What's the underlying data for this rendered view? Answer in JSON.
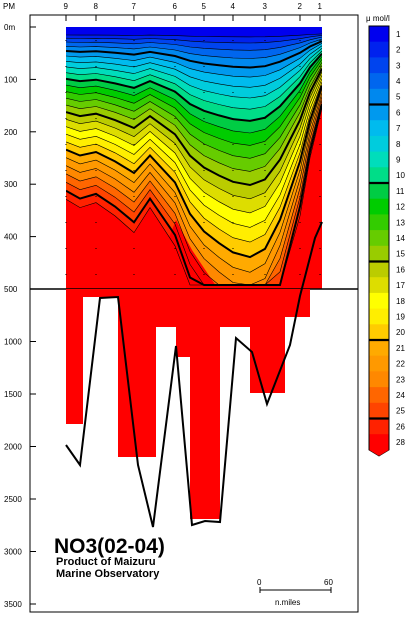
{
  "chart_data": {
    "type": "contour_section",
    "title": "NO3(02-04)",
    "subtitle_line1": "Product of Maizuru",
    "subtitle_line2": "Marine Observatory",
    "units": "μ mol/l",
    "top_axis_label": "PM",
    "station_labels": [
      "9",
      "8",
      "7",
      "6",
      "5",
      "4",
      "3",
      "2",
      "1"
    ],
    "depth_ticks_upper": [
      {
        "value": 0,
        "label": "0m"
      },
      {
        "value": 100,
        "label": "100"
      },
      {
        "value": 200,
        "label": "200"
      },
      {
        "value": 300,
        "label": "300"
      },
      {
        "value": 400,
        "label": "400"
      },
      {
        "value": 500,
        "label": "500"
      }
    ],
    "depth_ticks_lower": [
      {
        "value": 1000,
        "label": "1000"
      },
      {
        "value": 1500,
        "label": "1500"
      },
      {
        "value": 2000,
        "label": "2000"
      },
      {
        "value": 2500,
        "label": "2500"
      },
      {
        "value": 3000,
        "label": "3000"
      },
      {
        "value": 3500,
        "label": "3500"
      }
    ],
    "scale_bar": {
      "start_label": "0",
      "end_label": "60",
      "unit_label": "n.miles"
    },
    "colorbar_labels": [
      "1",
      "2",
      "3",
      "4",
      "5",
      "6",
      "7",
      "8",
      "9",
      "10",
      "11",
      "12",
      "13",
      "14",
      "15",
      "16",
      "17",
      "18",
      "19",
      "20",
      "21",
      "22",
      "23",
      "24",
      "25",
      "26",
      "28"
    ],
    "colorbar_colors": [
      "#0000ee",
      "#0022ee",
      "#0044ee",
      "#0066ee",
      "#0088ee",
      "#0099ee",
      "#00bbee",
      "#00ccdd",
      "#00ddbb",
      "#00dd88",
      "#00cc44",
      "#00cc00",
      "#33cc00",
      "#66cc00",
      "#99cc00",
      "#bbcc00",
      "#dddd00",
      "#ffff00",
      "#ffee00",
      "#ffcc00",
      "#ffaa00",
      "#ff9900",
      "#ff8800",
      "#ff6600",
      "#ff4400",
      "#ff2200",
      "#ff0000"
    ],
    "colorbar_thick_after": [
      5,
      10,
      15,
      20,
      25
    ],
    "thick_isolines": [
      5,
      10,
      15,
      20,
      25
    ]
  }
}
